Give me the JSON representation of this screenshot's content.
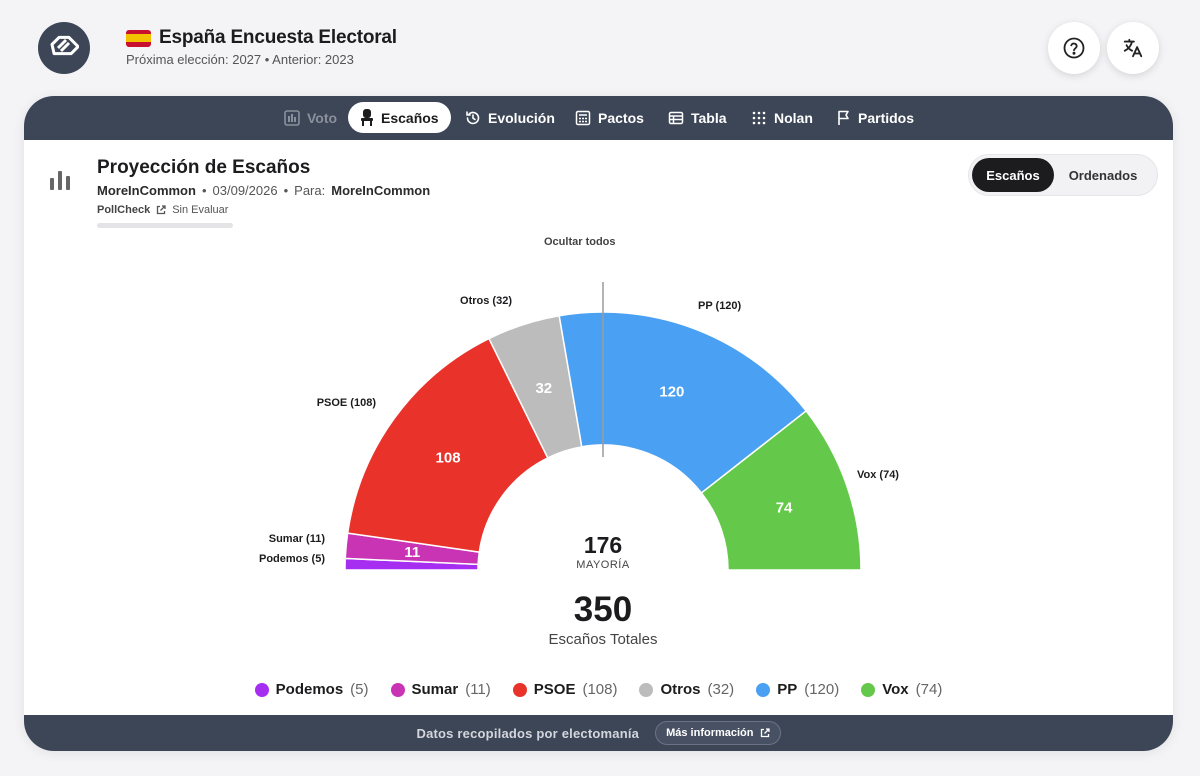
{
  "app": {
    "title": "España Encuesta Electoral",
    "subtitle": "Próxima elección: 2027 • Anterior: 2023",
    "logo_icon": "ballot-logo-icon",
    "help_icon": "help-circle-icon",
    "translate_icon": "translate-icon"
  },
  "tabs": [
    {
      "label": "Voto",
      "icon": "bar-chart-icon",
      "state": "disabled"
    },
    {
      "label": "Escaños",
      "icon": "seat-icon",
      "state": "active"
    },
    {
      "label": "Evolución",
      "icon": "history-icon",
      "state": "normal"
    },
    {
      "label": "Pactos",
      "icon": "calculator-icon",
      "state": "normal"
    },
    {
      "label": "Tabla",
      "icon": "table-icon",
      "state": "normal"
    },
    {
      "label": "Nolan",
      "icon": "grid-dots-icon",
      "state": "normal"
    },
    {
      "label": "Partidos",
      "icon": "flag-icon",
      "state": "normal"
    }
  ],
  "panel": {
    "title": "Proyección de Escaños",
    "pollster": "MoreInCommon",
    "date": "03/09/2026",
    "para_label": "Para:",
    "para_value": "MoreInCommon",
    "pollcheck_label": "PollCheck",
    "pollcheck_status": "Sin Evaluar",
    "toggle": {
      "active": "Escaños",
      "other": "Ordenados"
    },
    "hide_all": "Ocultar todos"
  },
  "chart_data": {
    "type": "pie",
    "subtype": "parliament-hemicycle",
    "slices": [
      {
        "name": "Podemos",
        "value": 5,
        "label": "Podemos (5)",
        "color": "#a62ef0"
      },
      {
        "name": "Sumar",
        "value": 11,
        "label": "Sumar (11)",
        "color": "#c934b4"
      },
      {
        "name": "PSOE",
        "value": 108,
        "label": "PSOE (108)",
        "color": "#e8322a"
      },
      {
        "name": "Otros",
        "value": 32,
        "label": "Otros (32)",
        "color": "#bcbcbc"
      },
      {
        "name": "PP",
        "value": 120,
        "label": "PP (120)",
        "color": "#4aa0f2"
      },
      {
        "name": "Vox",
        "value": 74,
        "label": "Vox (74)",
        "color": "#64c94a"
      }
    ],
    "total": 350,
    "total_label": "Escaños Totales",
    "majority": 176,
    "majority_label": "MAYORÍA",
    "legend_position": "bottom"
  },
  "footer": {
    "text": "Datos recopilados por electomanía",
    "button": "Más información"
  }
}
